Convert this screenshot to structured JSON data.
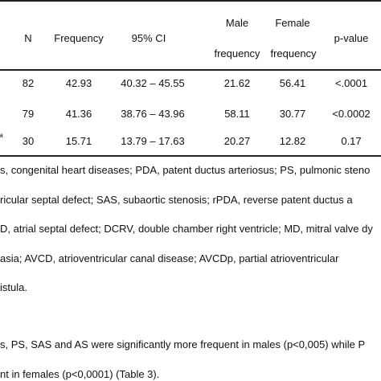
{
  "table": {
    "headers": {
      "n": "N",
      "frequency": "Frequency",
      "ci": "95% CI",
      "male_line1": "Male",
      "male_line2": "frequency",
      "female_line1": "Female",
      "female_line2": "frequency",
      "pvalue": "p-value"
    },
    "rows": [
      {
        "label": "",
        "n": "82",
        "frequency": "42.93",
        "ci": "40.32 – 45.55",
        "male": "21.62",
        "female": "56.41",
        "p": "<.0001"
      },
      {
        "label": "",
        "n": "79",
        "frequency": "41.36",
        "ci": "38.76 – 43.96",
        "male": "58.11",
        "female": "30.77",
        "p": "<0.0002"
      },
      {
        "label": "ª",
        "n": "30",
        "frequency": "15.71",
        "ci": "13.79 – 17.63",
        "male": "20.27",
        "female": "12.82",
        "p": "0.17"
      }
    ]
  },
  "footnote": {
    "line1": "s, congenital heart diseases; PDA, patent ductus arteriosus; PS, pulmonic steno",
    "line2": "ricular septal defect; SAS, subaortic stenosis; rPDA, reverse patent ductus a",
    "line3": "D, atrial septal defect; DCRV, double chamber right ventricle; MD, mitral valve dy",
    "line4": "asia; AVCD, atrioventricular canal disease; AVCDp, partial atrioventricular",
    "line5": "istula."
  },
  "body_text": {
    "line1": "s, PS, SAS and AS were significantly more frequent in males (p<0,005) while P",
    "line2": "nt in females (p<0,0001) (Table 3)."
  }
}
